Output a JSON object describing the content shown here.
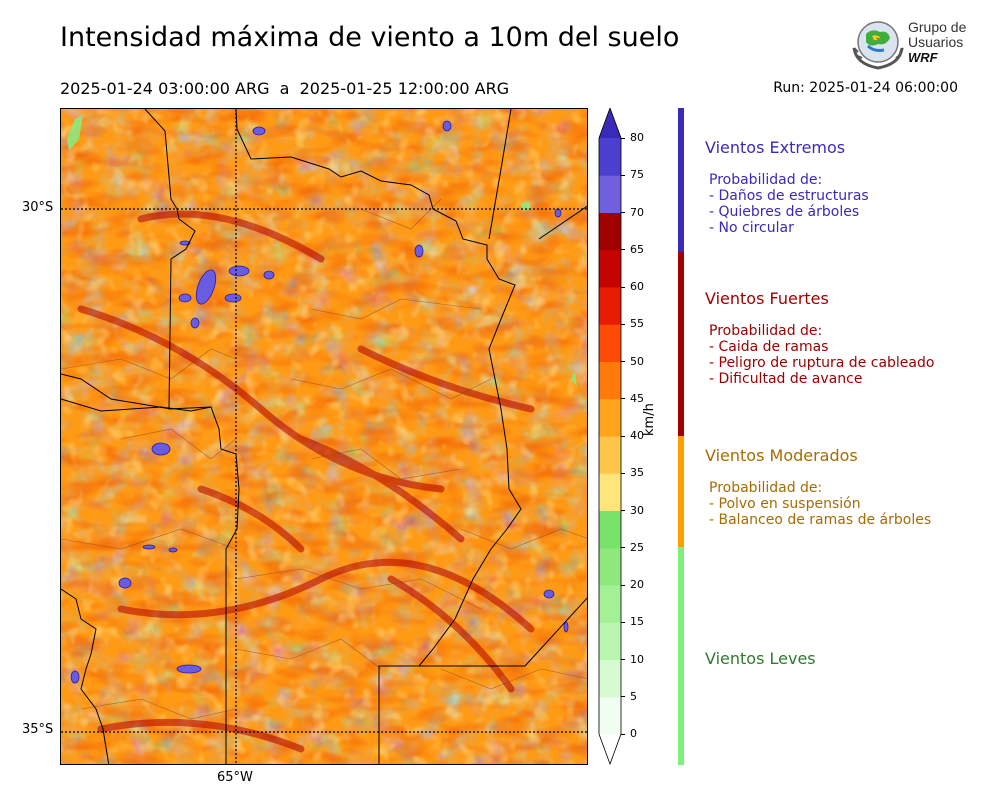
{
  "title": "Intensidad máxima de viento a 10m del suelo",
  "period": "2025-01-24 03:00:00 ARG  a  2025-01-25 12:00:00 ARG",
  "run": "Run: 2025-01-24 06:00:00",
  "logo": {
    "line1": "Grupo de",
    "line2": "Usuarios",
    "line3": "WRF"
  },
  "map": {
    "lat_labels": [
      "30°S",
      "35°S"
    ],
    "lon_labels": [
      "65°W"
    ]
  },
  "colorbar": {
    "unit": "km/h",
    "ticks": [
      "0",
      "5",
      "10",
      "15",
      "20",
      "25",
      "30",
      "35",
      "40",
      "45",
      "50",
      "55",
      "60",
      "65",
      "70",
      "75",
      "80"
    ],
    "colors": [
      "#f0fdf0",
      "#d6fbd2",
      "#bbf6b1",
      "#a3f095",
      "#8ee87e",
      "#79e26a",
      "#ffe57a",
      "#ffc54a",
      "#ffa41c",
      "#ff7a0a",
      "#ff4a04",
      "#e81c02",
      "#c50402",
      "#a00000",
      "#7060e0",
      "#4c3fd0",
      "#3a2ab8"
    ]
  },
  "categories": [
    {
      "title": "Vientos Extremos",
      "color": "#3a2ab8",
      "header": "Probabilidad de:",
      "items": [
        "- Daños de estructuras",
        "- Quiebres de árboles",
        "- No circular"
      ]
    },
    {
      "title": "Vientos Fuertes",
      "color": "#9a0000",
      "header": "Probabilidad de:",
      "items": [
        "- Caida de ramas",
        "- Peligro de ruptura de cableado",
        "- Dificultad de avance"
      ]
    },
    {
      "title": "Vientos Moderados",
      "color": "#a86b00",
      "header": "Probabilidad de:",
      "items": [
        "- Polvo en suspensión",
        "- Balanceo de ramas de árboles"
      ]
    },
    {
      "title": "Vientos Leves",
      "color": "#2f7a2f",
      "header": "",
      "items": []
    }
  ],
  "band_colors": [
    "#3a2ab8",
    "#a00000",
    "#ff9f00",
    "#7df27a"
  ]
}
